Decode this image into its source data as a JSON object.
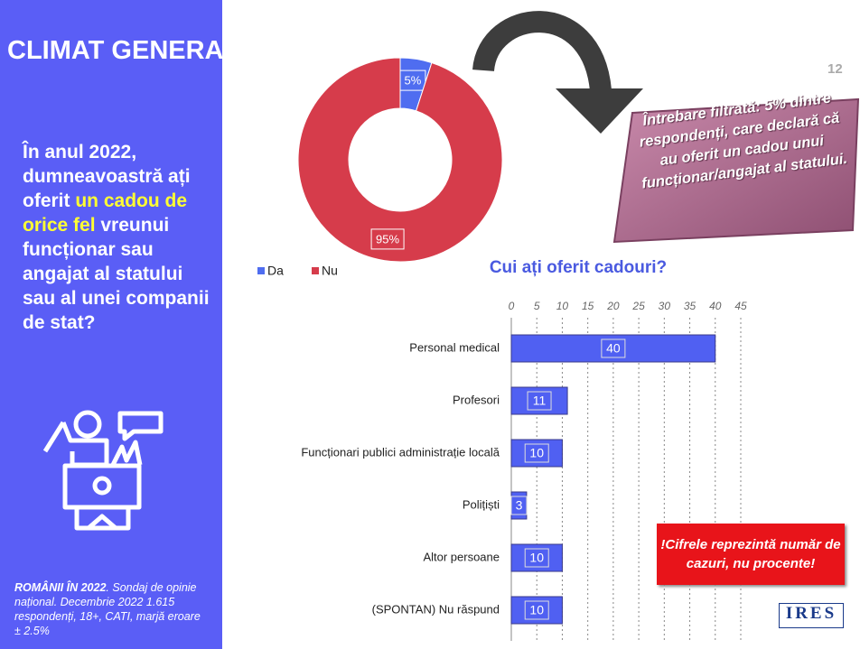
{
  "slide": {
    "title": "CLIMAT GENERAL",
    "page_number": "12",
    "question": [
      "În anul 2022, dumneavoastră ați oferit ",
      "un cadou de orice fel",
      " vreunui funcționar sau angajat al statului sau al unei companii de stat?"
    ],
    "footer": [
      "ROMÂNII ÎN 2022",
      ". Sondaj de opinie național. Decembrie 2022 1.615 respondenți, 18+, CATI, marjă eroare ± 2.5%"
    ],
    "callout": "Întrebare filtrată: 5% dintre respondenți, care declară că au oferit un cadou unui funcționar/angajat al statului.",
    "note": "!Cifrele reprezintă număr de cazuri, nu procente!",
    "logo": "IRES"
  },
  "chart_data": [
    {
      "type": "pie",
      "donut": true,
      "categories": [
        "Da",
        "Nu"
      ],
      "values": [
        5,
        95
      ],
      "value_labels": [
        "5%",
        "95%"
      ],
      "colors": [
        "#4f6df0",
        "#d63c4b"
      ],
      "legend": "bottom-left"
    },
    {
      "type": "bar",
      "orientation": "horizontal",
      "title": "Cui ați oferit cadouri?",
      "categories": [
        "Personal medical",
        "Profesori",
        "Funcționari publici administrație locală",
        "Polițiști",
        "Altor persoane",
        "(SPONTAN) Nu răspund"
      ],
      "values": [
        40,
        11,
        10,
        3,
        10,
        10
      ],
      "color": "#5060f2",
      "xlim": [
        0,
        45
      ],
      "xticks": [
        0,
        5,
        10,
        15,
        20,
        25,
        30,
        35,
        40,
        45
      ],
      "grid": true
    }
  ]
}
